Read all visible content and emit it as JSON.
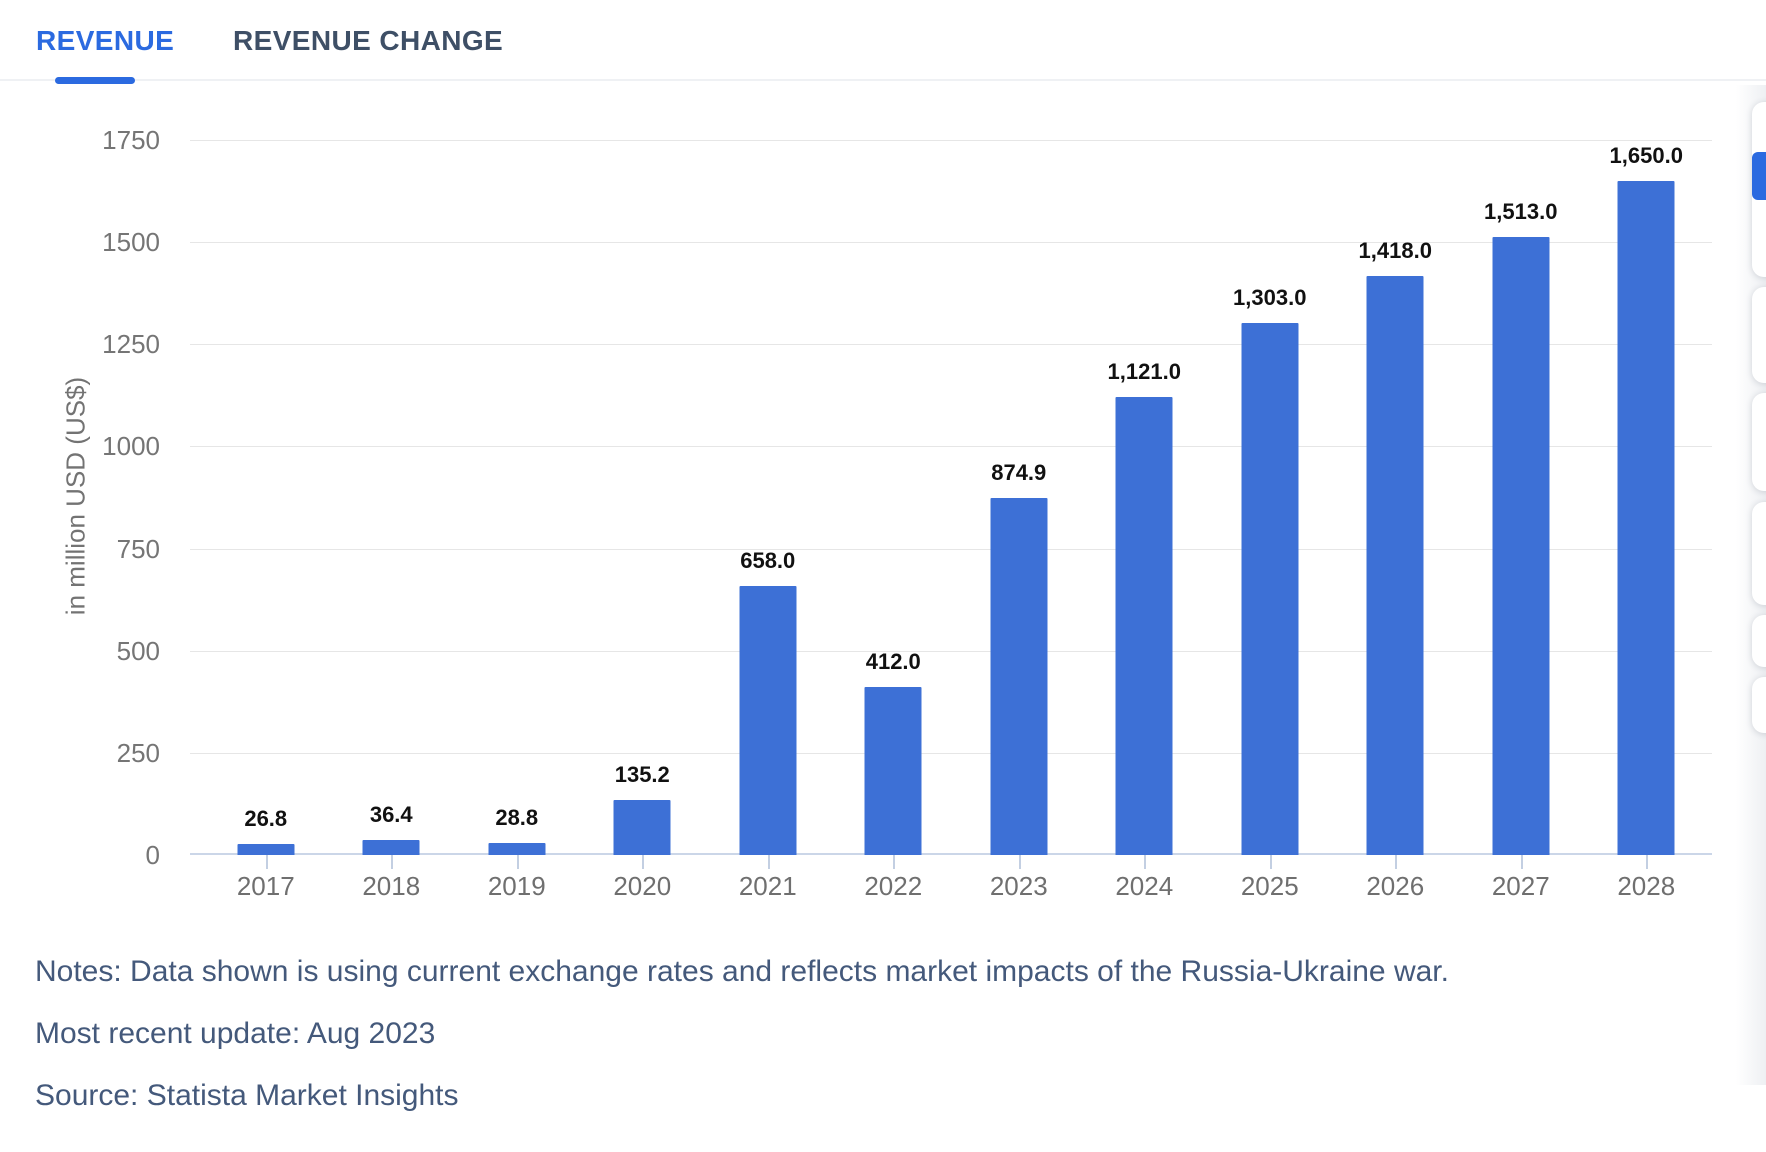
{
  "tabs": {
    "revenue": "REVENUE",
    "revenue_change": "REVENUE CHANGE"
  },
  "colors": {
    "accent_blue": "#2b6ae0",
    "bar_blue": "#3d70d6",
    "inactive_tab": "#3e4f66",
    "notes_text": "#44597b",
    "axis_text": "#757575",
    "gridline": "#e6e6e6",
    "baseline": "#cbd6e8"
  },
  "notes": {
    "notes_line": "Notes: Data shown is using current exchange rates and reflects market impacts of the Russia-Ukraine war.",
    "update_line": "Most recent update: Aug 2023",
    "source_line": "Source: Statista Market Insights"
  },
  "chart_data": {
    "type": "bar",
    "title": "",
    "xlabel": "",
    "ylabel": "in million USD (US$)",
    "categories": [
      "2017",
      "2018",
      "2019",
      "2020",
      "2021",
      "2022",
      "2023",
      "2024",
      "2025",
      "2026",
      "2027",
      "2028"
    ],
    "values": [
      26.8,
      36.4,
      28.8,
      135.2,
      658.0,
      412.0,
      874.9,
      1121.0,
      1303.0,
      1418.0,
      1513.0,
      1650.0
    ],
    "value_labels": [
      "26.8",
      "36.4",
      "28.8",
      "135.2",
      "658.0",
      "412.0",
      "874.9",
      "1,121.0",
      "1,303.0",
      "1,418.0",
      "1,513.0",
      "1,650.0"
    ],
    "yticks": [
      0,
      250,
      500,
      750,
      1000,
      1250,
      1500,
      1750
    ],
    "ylim": [
      0,
      1750
    ],
    "grid": true,
    "legend": false,
    "bar_color": "#3d70d6"
  }
}
